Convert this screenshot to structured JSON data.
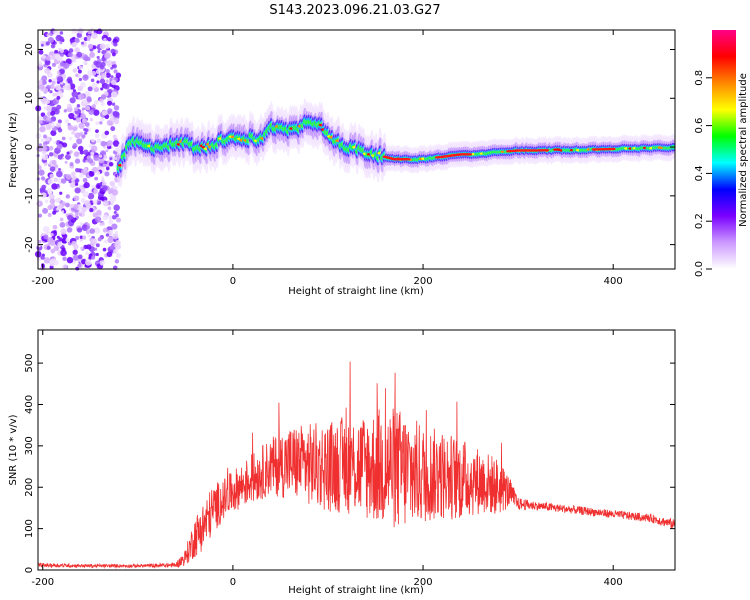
{
  "title": "S143.2023.096.21.03.G27",
  "chart_data": [
    {
      "type": "heatmap",
      "xlabel": "Height of straight line (km)",
      "ylabel": "Frequency (Hz)",
      "xlim": [
        -205,
        465
      ],
      "ylim": [
        -25,
        24
      ],
      "xticks": [
        -200,
        0,
        200,
        400
      ],
      "yticks": [
        -20,
        -10,
        0,
        10,
        20
      ],
      "colorbar": {
        "label": "Normalized spectral amplitude",
        "range": [
          0,
          1
        ],
        "ticks": [
          "0.0",
          "0.2",
          "0.4",
          "0.6",
          "0.8"
        ],
        "colors": [
          "#ffffff",
          "#cc99ff",
          "#7a00ff",
          "#0000ff",
          "#00ffff",
          "#00ff00",
          "#ffff00",
          "#ff8800",
          "#ff0000",
          "#ff0088"
        ]
      },
      "noise_region_x": [
        -205,
        -120
      ],
      "ridge": {
        "x": [
          -120,
          -110,
          -100,
          -90,
          -80,
          -70,
          -60,
          -50,
          -40,
          -30,
          -20,
          -10,
          0,
          10,
          20,
          30,
          40,
          50,
          60,
          70,
          80,
          90,
          100,
          110,
          120,
          130,
          140,
          150,
          160,
          170,
          180,
          200,
          220,
          240,
          260,
          280,
          300,
          320,
          340,
          360,
          380,
          400,
          420,
          440,
          465
        ],
        "y": [
          -5,
          1,
          1,
          0,
          0,
          0.5,
          0.5,
          1,
          0,
          0,
          0.5,
          1.5,
          2,
          1,
          2,
          1.5,
          4,
          4.5,
          3.5,
          4,
          5.5,
          5,
          3,
          1,
          0,
          -0.5,
          -1,
          -1.5,
          -2,
          -2.5,
          -2.5,
          -2.5,
          -2,
          -1.5,
          -1.5,
          -1,
          -0.7,
          -0.7,
          -0.6,
          -0.6,
          -0.5,
          -0.4,
          -0.3,
          -0.2,
          -0.1
        ]
      }
    },
    {
      "type": "line",
      "xlabel": "Height of straight line (km)",
      "ylabel": "SNR (10 * v/v)",
      "xlim": [
        -205,
        465
      ],
      "ylim": [
        0,
        580
      ],
      "xticks": [
        -200,
        0,
        200,
        400
      ],
      "yticks": [
        0,
        100,
        200,
        300,
        400,
        500
      ],
      "color": "#f03030",
      "series": [
        {
          "x": [
            -205,
            -150,
            -100,
            -60,
            -50,
            -40,
            -30,
            -20,
            -10,
            0,
            20,
            40,
            60,
            80,
            100,
            120,
            140,
            160,
            180,
            200,
            220,
            240,
            260,
            280,
            290,
            300,
            320,
            340,
            360,
            380,
            400,
            420,
            440,
            465
          ],
          "y": [
            12,
            10,
            10,
            12,
            30,
            80,
            110,
            150,
            170,
            190,
            220,
            250,
            260,
            255,
            250,
            255,
            250,
            250,
            240,
            230,
            230,
            220,
            215,
            200,
            190,
            160,
            155,
            150,
            145,
            140,
            135,
            130,
            125,
            110
          ],
          "spread": [
            5,
            4,
            4,
            6,
            20,
            50,
            60,
            60,
            50,
            50,
            60,
            70,
            90,
            100,
            110,
            120,
            130,
            150,
            150,
            120,
            110,
            100,
            80,
            70,
            40,
            15,
            10,
            10,
            10,
            10,
            10,
            10,
            10,
            12
          ]
        }
      ]
    }
  ]
}
